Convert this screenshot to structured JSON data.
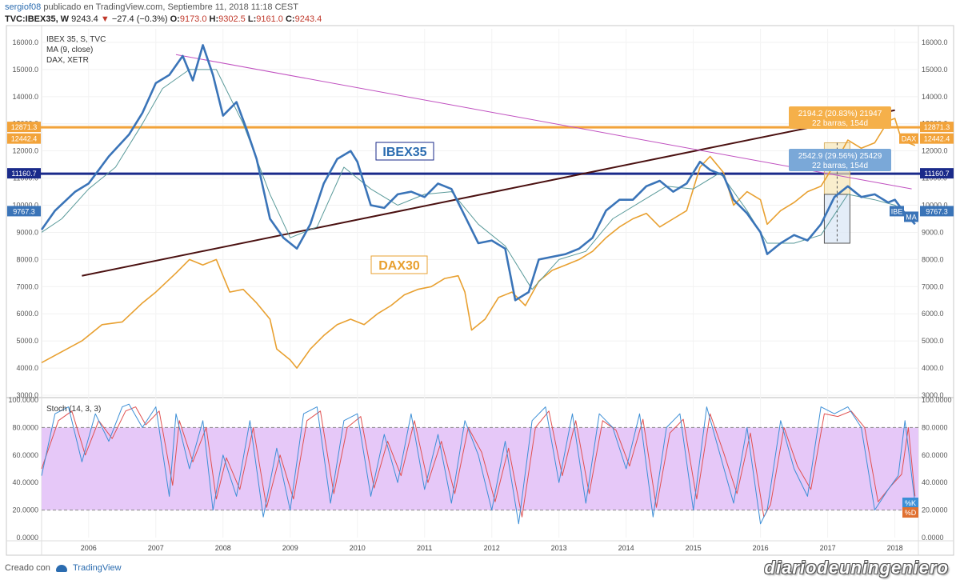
{
  "header": {
    "author": "sergiof08",
    "published_text": "publicado en TradingView.com, Septiembre 11, 2018 11:18 CEST",
    "symbol": "TVC:IBEX35, W",
    "last": "9243.4",
    "change_arrow": "▼",
    "change": "−27.4 (−0.3%)",
    "o_label": "O:",
    "o_value": "9173.0",
    "h_label": "H:",
    "h_value": "9302.5",
    "l_label": "L:",
    "l_value": "9161.0",
    "c_label": "C:",
    "c_value": "9243.4"
  },
  "footer": {
    "created_with": "Creado con",
    "brand": "TradingView",
    "watermark": "diariodeuningeniero"
  },
  "colors": {
    "ibex": "#3a74b8",
    "ibex_ma": "#5a9a9a",
    "dax": "#e8a030",
    "orange_level": "#f2a33a",
    "navy_level": "#1a2a8a",
    "trend_dark": "#4a1010",
    "trend_purple": "#c050c0",
    "stoch_band": "#e6c8f8",
    "stoch_k": "#3d8fd6",
    "stoch_d": "#e05050"
  },
  "chart_data": [
    {
      "type": "line",
      "legend": [
        "IBEX 35, S, TVC",
        "MA (9, close)",
        "DAX, XETR"
      ],
      "x_ticks": [
        "2006",
        "2007",
        "2008",
        "2009",
        "2010",
        "2011",
        "2012",
        "2013",
        "2014",
        "2015",
        "2016",
        "2017",
        "2018"
      ],
      "y_ticks": [
        "16000.0",
        "15000.0",
        "14000.0",
        "13000.0",
        "12000.0",
        "11000.0",
        "10000.0",
        "9000.0",
        "8000.0",
        "7000.0",
        "6000.0",
        "5000.0",
        "4000.0",
        "3000.0"
      ],
      "ylim": [
        3000,
        16500
      ],
      "xlim": [
        2005.3,
        2018.35
      ],
      "series": [
        {
          "name": "IBEX 35, S, TVC",
          "color": "#3a74b8",
          "x": [
            2005.3,
            2005.5,
            2005.8,
            2006.0,
            2006.3,
            2006.6,
            2006.8,
            2007.0,
            2007.2,
            2007.4,
            2007.55,
            2007.7,
            2007.85,
            2008.0,
            2008.2,
            2008.35,
            2008.5,
            2008.7,
            2008.9,
            2009.1,
            2009.3,
            2009.5,
            2009.7,
            2009.9,
            2010.0,
            2010.2,
            2010.4,
            2010.6,
            2010.8,
            2011.0,
            2011.2,
            2011.4,
            2011.6,
            2011.8,
            2012.0,
            2012.2,
            2012.35,
            2012.55,
            2012.7,
            2012.9,
            2013.1,
            2013.3,
            2013.5,
            2013.7,
            2013.9,
            2014.1,
            2014.3,
            2014.5,
            2014.7,
            2014.9,
            2015.1,
            2015.25,
            2015.45,
            2015.6,
            2015.8,
            2016.0,
            2016.1,
            2016.3,
            2016.5,
            2016.7,
            2016.9,
            2017.1,
            2017.3,
            2017.5,
            2017.7,
            2017.9,
            2018.0,
            2018.15,
            2018.3
          ],
          "values": [
            9100,
            9800,
            10500,
            10800,
            11800,
            12600,
            13400,
            14500,
            14800,
            15500,
            14600,
            15900,
            14800,
            13300,
            13800,
            12800,
            11700,
            9500,
            8800,
            8400,
            9300,
            10800,
            11700,
            12000,
            11600,
            10000,
            9900,
            10400,
            10500,
            10300,
            10800,
            10600,
            9600,
            8600,
            8700,
            8400,
            6500,
            6800,
            8000,
            8100,
            8200,
            8400,
            8800,
            9800,
            10200,
            10200,
            10700,
            10900,
            10500,
            10800,
            11600,
            11300,
            11100,
            10200,
            9700,
            9000,
            8200,
            8600,
            8900,
            8700,
            9300,
            10300,
            10700,
            10300,
            10400,
            10100,
            10200,
            9700,
            9300
          ]
        },
        {
          "name": "MA (9, close)",
          "color": "#5a9a9a",
          "x": [
            2005.3,
            2005.6,
            2006.0,
            2006.4,
            2006.8,
            2007.1,
            2007.5,
            2007.9,
            2008.3,
            2008.7,
            2009.0,
            2009.4,
            2009.8,
            2010.2,
            2010.6,
            2011.0,
            2011.4,
            2011.8,
            2012.2,
            2012.6,
            2013.0,
            2013.4,
            2013.8,
            2014.2,
            2014.6,
            2015.0,
            2015.4,
            2015.8,
            2016.1,
            2016.5,
            2016.9,
            2017.3,
            2017.7,
            2018.0,
            2018.3
          ],
          "values": [
            9000,
            9500,
            10600,
            11400,
            13000,
            14300,
            15000,
            15000,
            13000,
            10400,
            8800,
            9200,
            11400,
            10600,
            10000,
            10400,
            10500,
            9300,
            8500,
            6900,
            8000,
            8300,
            9500,
            10100,
            10700,
            10600,
            11200,
            9800,
            8600,
            8600,
            8900,
            10400,
            10200,
            10000,
            9500
          ]
        },
        {
          "name": "DAX, XETR",
          "color": "#e8a030",
          "x": [
            2005.3,
            2005.6,
            2005.9,
            2006.2,
            2006.5,
            2006.8,
            2007.0,
            2007.3,
            2007.5,
            2007.7,
            2007.9,
            2008.1,
            2008.3,
            2008.5,
            2008.7,
            2008.8,
            2009.0,
            2009.1,
            2009.3,
            2009.5,
            2009.7,
            2009.9,
            2010.1,
            2010.3,
            2010.5,
            2010.7,
            2010.9,
            2011.1,
            2011.3,
            2011.5,
            2011.6,
            2011.7,
            2011.9,
            2012.1,
            2012.3,
            2012.5,
            2012.7,
            2012.9,
            2013.1,
            2013.3,
            2013.5,
            2013.7,
            2013.9,
            2014.1,
            2014.3,
            2014.5,
            2014.7,
            2014.9,
            2015.1,
            2015.25,
            2015.45,
            2015.6,
            2015.8,
            2016.0,
            2016.1,
            2016.3,
            2016.5,
            2016.7,
            2016.9,
            2017.1,
            2017.3,
            2017.5,
            2017.7,
            2017.9,
            2018.0,
            2018.1,
            2018.3
          ],
          "values": [
            4200,
            4600,
            5000,
            5600,
            5700,
            6400,
            6800,
            7500,
            8000,
            7800,
            8000,
            6800,
            6900,
            6400,
            5800,
            4700,
            4300,
            4000,
            4700,
            5200,
            5600,
            5800,
            5600,
            6000,
            6300,
            6700,
            6900,
            7000,
            7300,
            7400,
            6800,
            5400,
            5800,
            6600,
            6800,
            6300,
            7200,
            7600,
            7800,
            8000,
            8300,
            8800,
            9200,
            9500,
            9700,
            9200,
            9500,
            9800,
            11400,
            11800,
            11200,
            10000,
            10500,
            10200,
            9300,
            9800,
            10100,
            10500,
            10700,
            11500,
            12400,
            12100,
            12300,
            13100,
            13200,
            12400,
            12200
          ]
        }
      ]
    },
    {
      "type": "line",
      "legend": [
        "Stoch (14, 3, 3)"
      ],
      "y_ticks": [
        "100.0000",
        "80.0000",
        "60.0000",
        "40.0000",
        "20.0000",
        "0.0000"
      ],
      "ylim": [
        0,
        100
      ],
      "series": [
        {
          "name": "%K",
          "color": "#3d8fd6",
          "x": [
            2005.3,
            2005.5,
            2005.7,
            2005.9,
            2006.1,
            2006.3,
            2006.5,
            2006.6,
            2006.8,
            2007.0,
            2007.2,
            2007.3,
            2007.5,
            2007.7,
            2007.85,
            2008.0,
            2008.2,
            2008.4,
            2008.6,
            2008.8,
            2009.0,
            2009.2,
            2009.4,
            2009.6,
            2009.8,
            2010.0,
            2010.2,
            2010.4,
            2010.6,
            2010.8,
            2011.0,
            2011.2,
            2011.4,
            2011.6,
            2011.8,
            2012.0,
            2012.2,
            2012.4,
            2012.6,
            2012.8,
            2013.0,
            2013.2,
            2013.4,
            2013.6,
            2013.8,
            2014.0,
            2014.2,
            2014.4,
            2014.6,
            2014.8,
            2015.0,
            2015.2,
            2015.4,
            2015.6,
            2015.8,
            2016.0,
            2016.1,
            2016.3,
            2016.5,
            2016.7,
            2016.9,
            2017.1,
            2017.3,
            2017.5,
            2017.7,
            2017.9,
            2018.05,
            2018.15,
            2018.3
          ],
          "values": [
            45,
            90,
            95,
            55,
            90,
            70,
            95,
            97,
            80,
            95,
            30,
            90,
            50,
            85,
            20,
            60,
            30,
            85,
            15,
            65,
            20,
            90,
            95,
            25,
            85,
            90,
            30,
            75,
            40,
            90,
            35,
            75,
            25,
            85,
            60,
            20,
            70,
            10,
            85,
            95,
            40,
            90,
            25,
            90,
            80,
            50,
            90,
            15,
            80,
            90,
            20,
            95,
            60,
            25,
            80,
            10,
            20,
            85,
            50,
            30,
            95,
            90,
            95,
            80,
            20,
            35,
            45,
            85,
            25
          ]
        },
        {
          "name": "%D",
          "color": "#e05050",
          "x": [
            2005.3,
            2005.55,
            2005.75,
            2005.95,
            2006.15,
            2006.35,
            2006.55,
            2006.7,
            2006.85,
            2007.05,
            2007.25,
            2007.35,
            2007.55,
            2007.75,
            2007.9,
            2008.05,
            2008.25,
            2008.45,
            2008.65,
            2008.85,
            2009.05,
            2009.25,
            2009.45,
            2009.65,
            2009.85,
            2010.05,
            2010.25,
            2010.45,
            2010.65,
            2010.85,
            2011.05,
            2011.25,
            2011.45,
            2011.65,
            2011.85,
            2012.05,
            2012.25,
            2012.45,
            2012.65,
            2012.85,
            2013.05,
            2013.25,
            2013.45,
            2013.65,
            2013.85,
            2014.05,
            2014.25,
            2014.45,
            2014.65,
            2014.85,
            2015.05,
            2015.25,
            2015.45,
            2015.65,
            2015.85,
            2016.05,
            2016.15,
            2016.35,
            2016.55,
            2016.75,
            2016.95,
            2017.15,
            2017.35,
            2017.55,
            2017.75,
            2017.95,
            2018.1,
            2018.2,
            2018.3
          ],
          "values": [
            50,
            85,
            92,
            60,
            85,
            72,
            92,
            95,
            82,
            92,
            38,
            85,
            55,
            80,
            28,
            58,
            35,
            80,
            22,
            60,
            28,
            85,
            92,
            32,
            80,
            88,
            36,
            70,
            45,
            85,
            40,
            70,
            32,
            80,
            62,
            26,
            65,
            15,
            80,
            92,
            45,
            85,
            32,
            85,
            78,
            52,
            86,
            22,
            76,
            86,
            28,
            90,
            62,
            32,
            76,
            15,
            24,
            80,
            52,
            35,
            90,
            88,
            92,
            80,
            26,
            38,
            46,
            80,
            30
          ]
        }
      ],
      "bands": {
        "upper": 80,
        "lower": 20
      }
    }
  ],
  "annotations": {
    "ibex_label": "IBEX35",
    "dax_label": "DAX30",
    "orange_box_line1": "2194.2 (20.83%) 21947",
    "orange_box_line2": "22 barras, 154d",
    "blue_box_line1": "2542.9 (29.56%) 25429",
    "blue_box_line2": "22 barras, 154d",
    "orange_level": "12871.3",
    "orange_level2": "12442.4",
    "navy_level": "11160.7",
    "ibex_last": "9767.3",
    "dax_tag": "DAX",
    "ibe_tag": "IBE",
    "ma_tag": "MA",
    "k_tag": "%K",
    "d_tag": "%D"
  }
}
